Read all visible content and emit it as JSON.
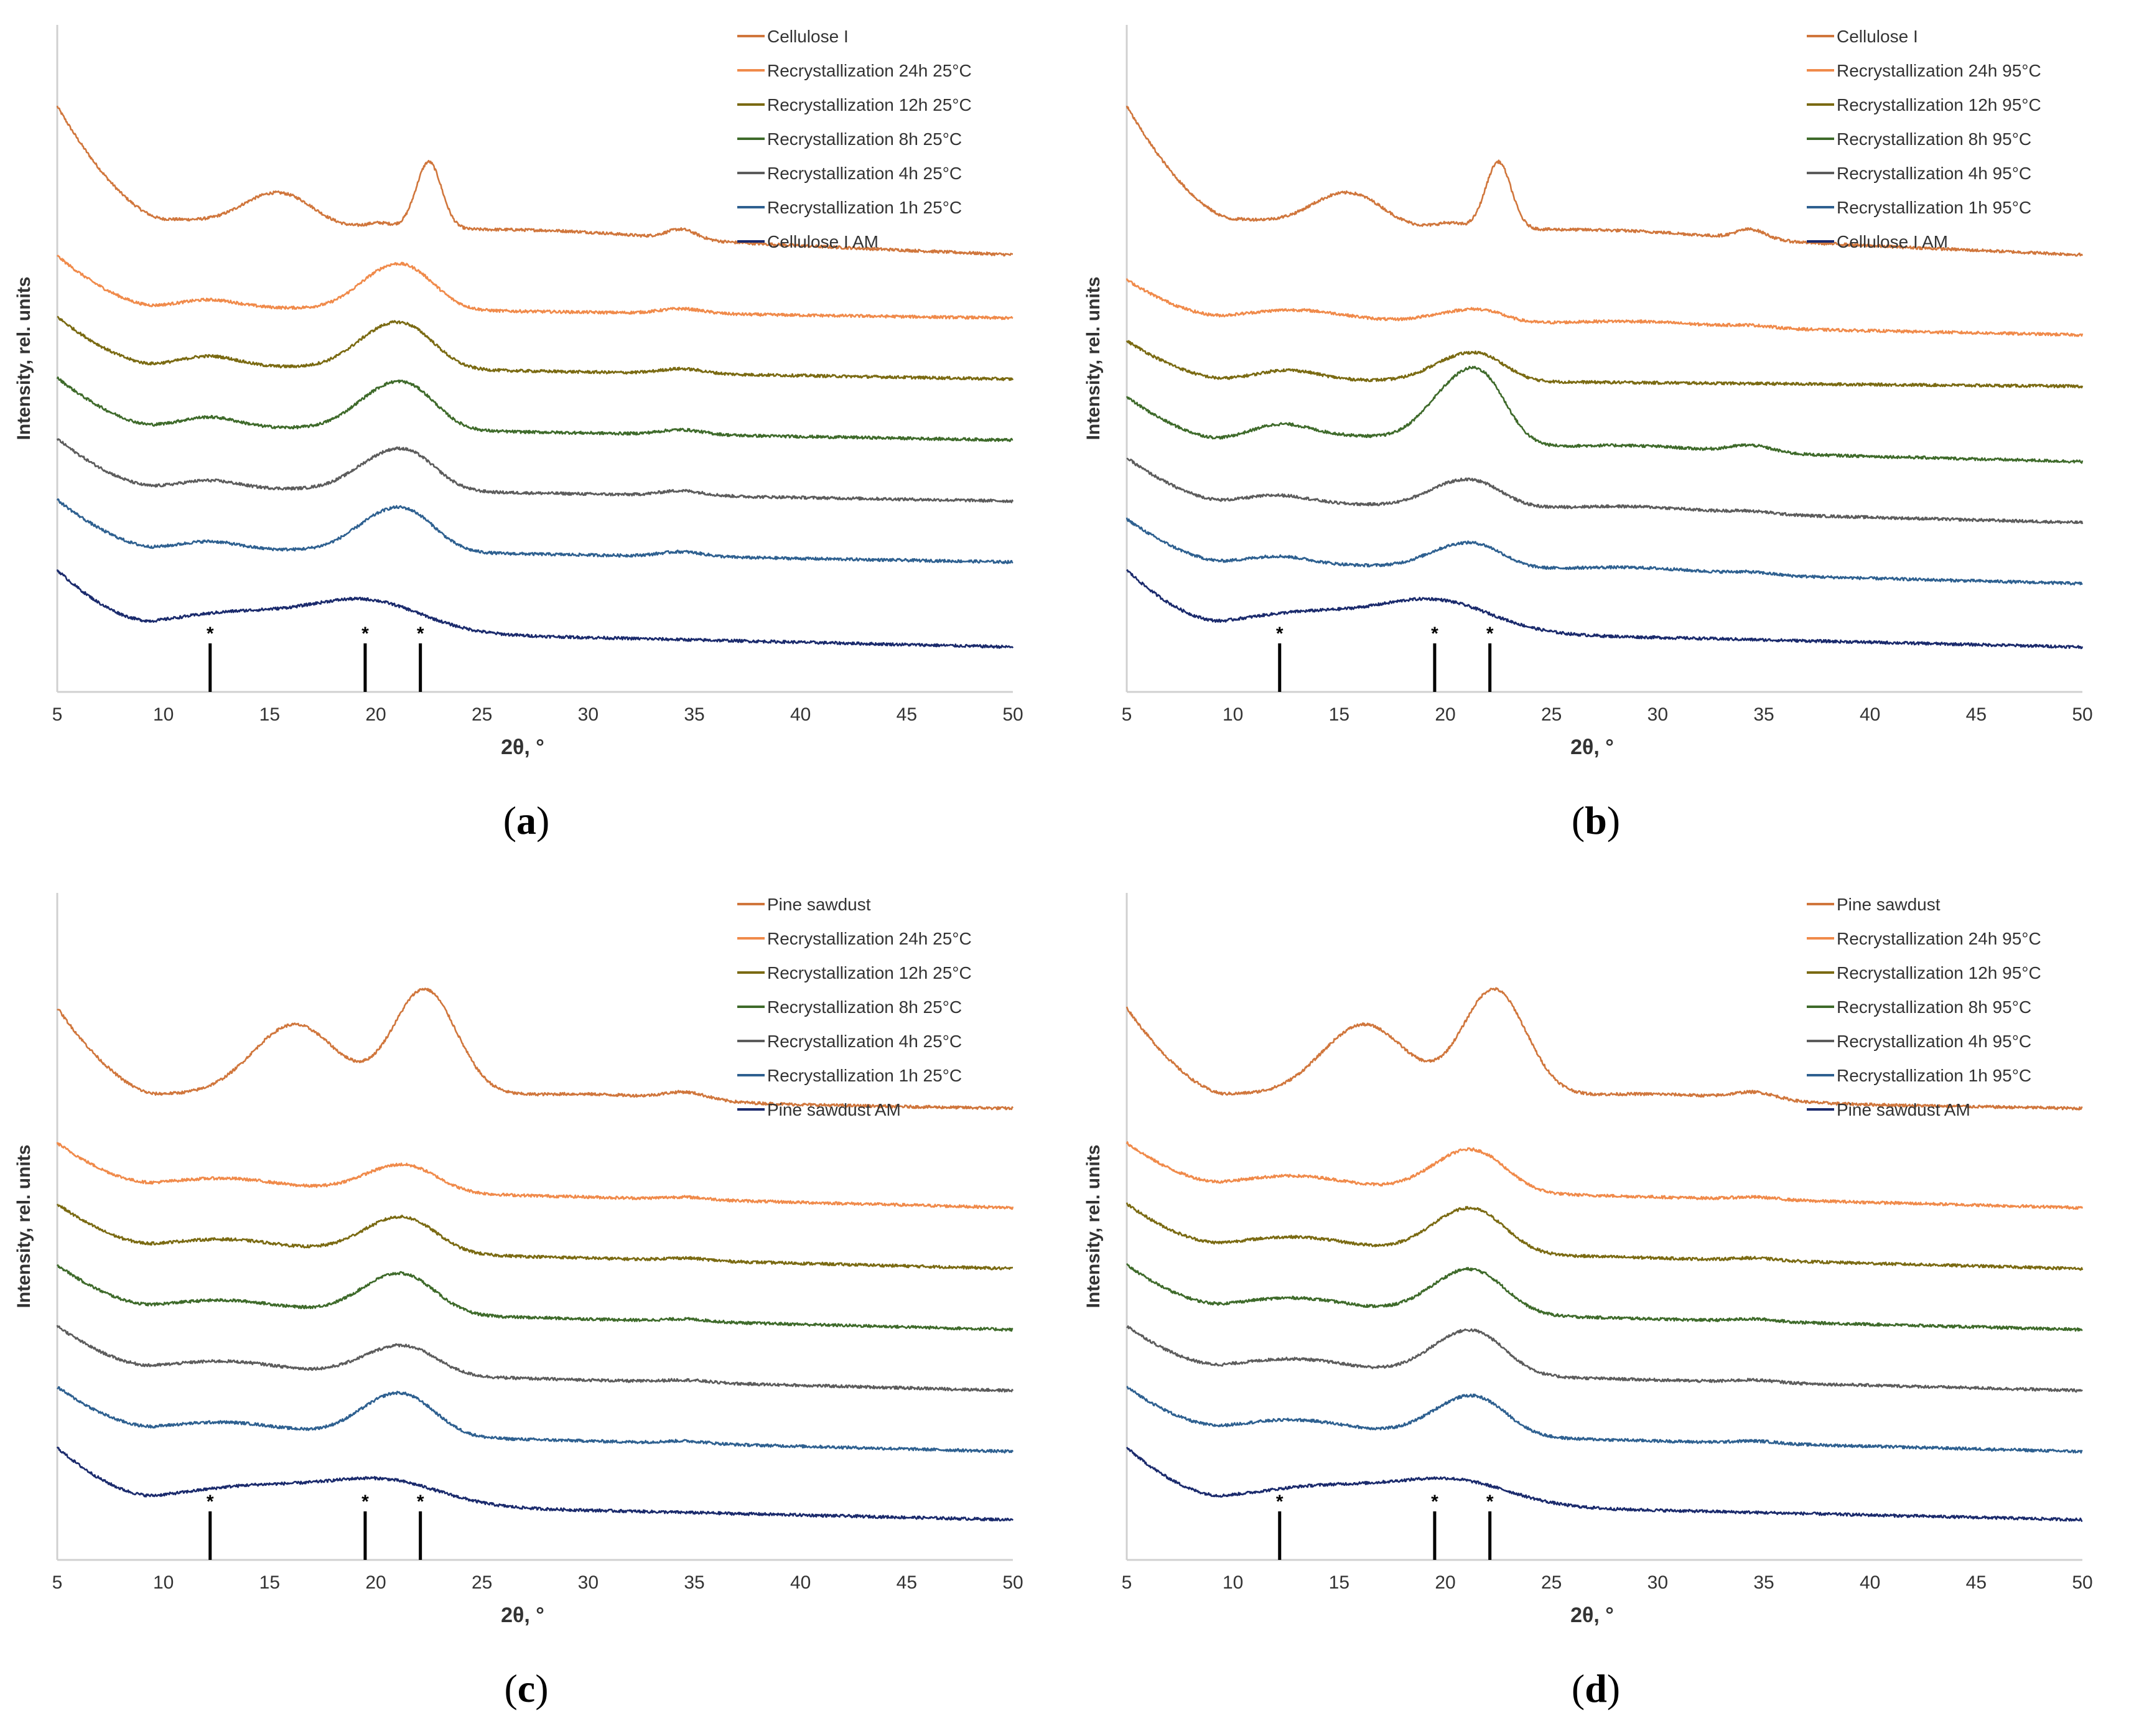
{
  "colors": [
    "#D0763C",
    "#F08A4A",
    "#7A6A12",
    "#3E6A2A",
    "#5C5C5C",
    "#2E6090",
    "#1A2A6C"
  ],
  "chart_data": [
    {
      "type": "line",
      "panel_label": "a",
      "xlabel": "2θ, °",
      "ylabel": "Intensity, rel. units",
      "xlim": [
        5,
        50
      ],
      "xticks": [
        "5",
        "10",
        "15",
        "20",
        "25",
        "30",
        "35",
        "40",
        "45",
        "50"
      ],
      "markers": [
        {
          "x": 12.2,
          "label": "*"
        },
        {
          "x": 19.5,
          "label": "*"
        },
        {
          "x": 22.1,
          "label": "*"
        }
      ],
      "legend_position": "top-right",
      "series": [
        {
          "name": "Cellulose I",
          "start": 0.92,
          "end": 0.3,
          "min_x": 10,
          "min_y": 0.45,
          "peaks": [
            [
              14.8,
              0.1,
              1.3
            ],
            [
              16.4,
              0.06,
              1.1
            ],
            [
              20.2,
              0.02,
              0.6
            ],
            [
              22.5,
              0.28,
              0.6
            ],
            [
              29,
              0.02,
              4
            ],
            [
              34.4,
              0.04,
              0.7
            ]
          ]
        },
        {
          "name": "Recrystallization 24h 25°C",
          "start": 0.68,
          "end": 0.42,
          "min_x": 9.6,
          "min_y": 0.47,
          "peaks": [
            [
              12.2,
              0.03,
              1.3
            ],
            [
              20.4,
              0.14,
              1.4
            ],
            [
              22.0,
              0.09,
              1.2
            ],
            [
              34.4,
              0.02,
              1.0
            ]
          ]
        },
        {
          "name": "Recrystallization 12h 25°C",
          "start": 0.68,
          "end": 0.42,
          "min_x": 9.6,
          "min_y": 0.48,
          "peaks": [
            [
              12.2,
              0.04,
              1.3
            ],
            [
              20.4,
              0.15,
              1.5
            ],
            [
              22.0,
              0.08,
              1.2
            ],
            [
              34.4,
              0.02,
              1.0
            ]
          ]
        },
        {
          "name": "Recrystallization 8h 25°C",
          "start": 0.68,
          "end": 0.42,
          "min_x": 9.6,
          "min_y": 0.48,
          "peaks": [
            [
              12.2,
              0.04,
              1.3
            ],
            [
              20.4,
              0.15,
              1.5
            ],
            [
              22.0,
              0.09,
              1.2
            ],
            [
              34.4,
              0.02,
              1.0
            ]
          ]
        },
        {
          "name": "Recrystallization 4h 25°C",
          "start": 0.68,
          "end": 0.42,
          "min_x": 9.6,
          "min_y": 0.48,
          "peaks": [
            [
              12.2,
              0.03,
              1.3
            ],
            [
              20.4,
              0.13,
              1.5
            ],
            [
              22.0,
              0.08,
              1.2
            ],
            [
              34.4,
              0.02,
              1.0
            ]
          ]
        },
        {
          "name": "Recrystallization 1h 25°C",
          "start": 0.68,
          "end": 0.42,
          "min_x": 9.6,
          "min_y": 0.48,
          "peaks": [
            [
              12.2,
              0.03,
              1.3
            ],
            [
              20.4,
              0.14,
              1.5
            ],
            [
              22.0,
              0.08,
              1.2
            ],
            [
              34.4,
              0.02,
              1.0
            ]
          ]
        },
        {
          "name": "Cellulose I AM",
          "start": 0.64,
          "end": 0.32,
          "min_x": 9.6,
          "min_y": 0.4,
          "peaks": [
            [
              13.5,
              0.07,
              3
            ],
            [
              19.6,
              0.13,
              2.6
            ]
          ]
        }
      ]
    },
    {
      "type": "line",
      "panel_label": "b",
      "xlabel": "2θ, °",
      "ylabel": "Intensity, rel. units",
      "xlim": [
        5,
        50
      ],
      "xticks": [
        "5",
        "10",
        "15",
        "20",
        "25",
        "30",
        "35",
        "40",
        "45",
        "50"
      ],
      "markers": [
        {
          "x": 12.2,
          "label": "*"
        },
        {
          "x": 19.5,
          "label": "*"
        },
        {
          "x": 22.1,
          "label": "*"
        }
      ],
      "legend_position": "top-right",
      "series": [
        {
          "name": "Cellulose I",
          "start": 0.92,
          "end": 0.3,
          "min_x": 10,
          "min_y": 0.45,
          "peaks": [
            [
              14.8,
              0.1,
              1.3
            ],
            [
              16.4,
              0.06,
              1.1
            ],
            [
              20.2,
              0.02,
              0.6
            ],
            [
              22.5,
              0.28,
              0.6
            ],
            [
              29,
              0.02,
              4
            ],
            [
              34.4,
              0.04,
              0.7
            ]
          ]
        },
        {
          "name": "Recrystallization 24h 95°C",
          "start": 0.58,
          "end": 0.35,
          "min_x": 9.6,
          "min_y": 0.42,
          "peaks": [
            [
              13.0,
              0.04,
              2.2
            ],
            [
              20.5,
              0.04,
              1.4
            ],
            [
              22.0,
              0.03,
              1.0
            ],
            [
              29,
              0.02,
              3
            ],
            [
              34.4,
              0.01,
              1.0
            ]
          ]
        },
        {
          "name": "Recrystallization 12h 95°C",
          "start": 0.58,
          "end": 0.39,
          "min_x": 9.6,
          "min_y": 0.42,
          "peaks": [
            [
              12.6,
              0.04,
              1.4
            ],
            [
              20.4,
              0.08,
              1.3
            ],
            [
              22.0,
              0.07,
              1.1
            ]
          ]
        },
        {
          "name": "Recrystallization 8h 95°C",
          "start": 0.6,
          "end": 0.33,
          "min_x": 9.6,
          "min_y": 0.42,
          "peaks": [
            [
              12.2,
              0.06,
              1.4
            ],
            [
              15.5,
              0.03,
              2.5
            ],
            [
              20.4,
              0.22,
              1.4
            ],
            [
              22.0,
              0.18,
              1.1
            ],
            [
              29,
              0.02,
              3
            ],
            [
              34.4,
              0.03,
              1.0
            ]
          ]
        },
        {
          "name": "Recrystallization 4h 95°C",
          "start": 0.6,
          "end": 0.33,
          "min_x": 9.6,
          "min_y": 0.42,
          "peaks": [
            [
              12.2,
              0.03,
              1.4
            ],
            [
              20.4,
              0.09,
              1.4
            ],
            [
              22.0,
              0.05,
              1.1
            ],
            [
              29,
              0.02,
              3
            ],
            [
              34.4,
              0.01,
              1.0
            ]
          ]
        },
        {
          "name": "Recrystallization 1h 95°C",
          "start": 0.6,
          "end": 0.33,
          "min_x": 9.6,
          "min_y": 0.42,
          "peaks": [
            [
              12.2,
              0.03,
              1.4
            ],
            [
              20.4,
              0.08,
              1.4
            ],
            [
              22.0,
              0.05,
              1.1
            ],
            [
              29,
              0.02,
              3
            ],
            [
              34.4,
              0.01,
              1.0
            ]
          ]
        },
        {
          "name": "Cellulose I AM",
          "start": 0.64,
          "end": 0.32,
          "min_x": 9.6,
          "min_y": 0.4,
          "peaks": [
            [
              13.5,
              0.07,
              3
            ],
            [
              19.6,
              0.13,
              2.6
            ]
          ]
        }
      ]
    },
    {
      "type": "line",
      "panel_label": "c",
      "xlabel": "2θ, °",
      "ylabel": "Intensity, rel. units",
      "xlim": [
        5,
        50
      ],
      "xticks": [
        "5",
        "10",
        "15",
        "20",
        "25",
        "30",
        "35",
        "40",
        "45",
        "50"
      ],
      "markers": [
        {
          "x": 12.2,
          "label": "*"
        },
        {
          "x": 19.5,
          "label": "*"
        },
        {
          "x": 22.1,
          "label": "*"
        }
      ],
      "legend_position": "top-right",
      "series": [
        {
          "name": "Pine sawdust",
          "start": 0.78,
          "end": 0.36,
          "min_x": 9.6,
          "min_y": 0.42,
          "peaks": [
            [
              16.2,
              0.3,
              2.0
            ],
            [
              22.3,
              0.45,
              1.5
            ],
            [
              30,
              0.03,
              4
            ],
            [
              34.6,
              0.03,
              1.0
            ]
          ]
        },
        {
          "name": "Recrystallization 24h 25°C",
          "start": 0.6,
          "end": 0.33,
          "min_x": 9.6,
          "min_y": 0.42,
          "peaks": [
            [
              13,
              0.04,
              2.5
            ],
            [
              20.6,
              0.08,
              1.6
            ],
            [
              22.0,
              0.05,
              1.3
            ],
            [
              34.6,
              0.01,
              1.0
            ]
          ]
        },
        {
          "name": "Recrystallization 12h 25°C",
          "start": 0.6,
          "end": 0.33,
          "min_x": 9.6,
          "min_y": 0.42,
          "peaks": [
            [
              13,
              0.04,
              2.5
            ],
            [
              20.6,
              0.11,
              1.6
            ],
            [
              22.0,
              0.06,
              1.3
            ],
            [
              34.6,
              0.01,
              1.0
            ]
          ]
        },
        {
          "name": "Recrystallization 8h 25°C",
          "start": 0.6,
          "end": 0.33,
          "min_x": 9.6,
          "min_y": 0.42,
          "peaks": [
            [
              13,
              0.04,
              2.5
            ],
            [
              20.6,
              0.13,
              1.6
            ],
            [
              22.0,
              0.06,
              1.3
            ],
            [
              34.6,
              0.01,
              1.0
            ]
          ]
        },
        {
          "name": "Recrystallization 4h 25°C",
          "start": 0.6,
          "end": 0.33,
          "min_x": 9.6,
          "min_y": 0.42,
          "peaks": [
            [
              13,
              0.04,
              2.5
            ],
            [
              20.6,
              0.09,
              1.6
            ],
            [
              22.0,
              0.05,
              1.3
            ],
            [
              34.6,
              0.01,
              1.0
            ]
          ]
        },
        {
          "name": "Recrystallization 1h 25°C",
          "start": 0.6,
          "end": 0.33,
          "min_x": 9.6,
          "min_y": 0.42,
          "peaks": [
            [
              13,
              0.04,
              2.5
            ],
            [
              20.6,
              0.14,
              1.6
            ],
            [
              22.0,
              0.06,
              1.3
            ],
            [
              34.6,
              0.01,
              1.0
            ]
          ]
        },
        {
          "name": "Pine sawdust AM",
          "start": 0.6,
          "end": 0.3,
          "min_x": 9.6,
          "min_y": 0.38,
          "peaks": [
            [
              14.5,
              0.07,
              3.2
            ],
            [
              20.5,
              0.1,
              2.6
            ]
          ]
        }
      ]
    },
    {
      "type": "line",
      "panel_label": "d",
      "xlabel": "2θ, °",
      "ylabel": "Intensity, rel. units",
      "xlim": [
        5,
        50
      ],
      "xticks": [
        "5",
        "10",
        "15",
        "20",
        "25",
        "30",
        "35",
        "40",
        "45",
        "50"
      ],
      "markers": [
        {
          "x": 12.2,
          "label": "*"
        },
        {
          "x": 19.5,
          "label": "*"
        },
        {
          "x": 22.1,
          "label": "*"
        }
      ],
      "legend_position": "top-right",
      "series": [
        {
          "name": "Pine sawdust",
          "start": 0.78,
          "end": 0.36,
          "min_x": 9.6,
          "min_y": 0.42,
          "peaks": [
            [
              16.2,
              0.3,
              2.0
            ],
            [
              22.3,
              0.45,
              1.5
            ],
            [
              30,
              0.03,
              4
            ],
            [
              34.6,
              0.03,
              1.0
            ]
          ]
        },
        {
          "name": "Recrystallization 24h 95°C",
          "start": 0.6,
          "end": 0.33,
          "min_x": 9.6,
          "min_y": 0.42,
          "peaks": [
            [
              13,
              0.05,
              2.5
            ],
            [
              20.6,
              0.13,
              1.6
            ],
            [
              22.0,
              0.07,
              1.3
            ],
            [
              34.6,
              0.01,
              1.0
            ]
          ]
        },
        {
          "name": "Recrystallization 12h 95°C",
          "start": 0.6,
          "end": 0.33,
          "min_x": 9.6,
          "min_y": 0.42,
          "peaks": [
            [
              13,
              0.05,
              2.5
            ],
            [
              20.6,
              0.14,
              1.6
            ],
            [
              22.0,
              0.07,
              1.3
            ],
            [
              34.6,
              0.01,
              1.0
            ]
          ]
        },
        {
          "name": "Recrystallization 8h 95°C",
          "start": 0.6,
          "end": 0.33,
          "min_x": 9.6,
          "min_y": 0.42,
          "peaks": [
            [
              13,
              0.05,
              2.5
            ],
            [
              20.6,
              0.14,
              1.6
            ],
            [
              22.0,
              0.07,
              1.3
            ],
            [
              34.6,
              0.01,
              1.0
            ]
          ]
        },
        {
          "name": "Recrystallization 4h 95°C",
          "start": 0.6,
          "end": 0.33,
          "min_x": 9.6,
          "min_y": 0.42,
          "peaks": [
            [
              13,
              0.05,
              2.5
            ],
            [
              20.6,
              0.14,
              1.6
            ],
            [
              22.0,
              0.07,
              1.3
            ],
            [
              34.6,
              0.01,
              1.0
            ]
          ]
        },
        {
          "name": "Recrystallization 1h 95°C",
          "start": 0.6,
          "end": 0.33,
          "min_x": 9.6,
          "min_y": 0.42,
          "peaks": [
            [
              13,
              0.05,
              2.5
            ],
            [
              20.6,
              0.12,
              1.6
            ],
            [
              22.0,
              0.07,
              1.3
            ],
            [
              34.6,
              0.01,
              1.0
            ]
          ]
        },
        {
          "name": "Pine sawdust AM",
          "start": 0.6,
          "end": 0.3,
          "min_x": 9.6,
          "min_y": 0.38,
          "peaks": [
            [
              14.5,
              0.07,
              3.2
            ],
            [
              20.5,
              0.1,
              2.6
            ]
          ]
        }
      ]
    }
  ]
}
